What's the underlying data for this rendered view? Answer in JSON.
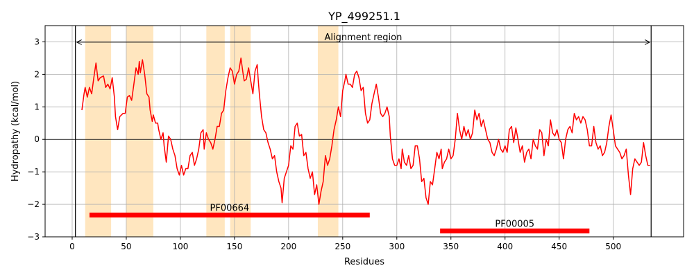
{
  "chart_data": {
    "type": "line",
    "title": "YP_499251.1",
    "xlabel": "Residues",
    "ylabel": "Hydropathy (kcal/mol)",
    "xlim": [
      -25,
      565
    ],
    "ylim": [
      -3,
      3.5
    ],
    "xticks": [
      0,
      50,
      100,
      150,
      200,
      250,
      300,
      350,
      400,
      450,
      500
    ],
    "yticks": [
      -3,
      -2,
      -1,
      0,
      1,
      2,
      3
    ],
    "grid": true,
    "colors": {
      "series": "#ff0000",
      "highlight": "#ffe6bf",
      "domain_bar": "#ff0000",
      "guides": "#000000"
    },
    "highlighted_regions": [
      [
        12,
        36
      ],
      [
        50,
        75
      ],
      [
        124,
        141
      ],
      [
        146,
        165
      ],
      [
        227,
        246
      ]
    ],
    "alignment_region": {
      "label": "Alignment region",
      "start": 3,
      "end": 535,
      "y": 2.99
    },
    "domains": [
      {
        "label": "PF00664",
        "start": 16,
        "end": 275,
        "y": -2.33
      },
      {
        "label": "PF00005",
        "start": 340,
        "end": 478,
        "y": -2.82
      }
    ],
    "series": [
      {
        "values": [
          [
            9,
            0.9
          ],
          [
            11,
            1.4
          ],
          [
            12,
            1.6
          ],
          [
            14,
            1.3
          ],
          [
            16,
            1.6
          ],
          [
            18,
            1.4
          ],
          [
            20,
            1.9
          ],
          [
            22,
            2.35
          ],
          [
            24,
            1.8
          ],
          [
            26,
            1.9
          ],
          [
            29,
            1.95
          ],
          [
            31,
            1.6
          ],
          [
            33,
            1.7
          ],
          [
            35,
            1.55
          ],
          [
            37,
            1.9
          ],
          [
            39,
            1.3
          ],
          [
            40,
            0.7
          ],
          [
            42,
            0.3
          ],
          [
            44,
            0.7
          ],
          [
            47,
            0.8
          ],
          [
            49,
            0.8
          ],
          [
            51,
            1.3
          ],
          [
            53,
            1.35
          ],
          [
            55,
            1.2
          ],
          [
            57,
            1.7
          ],
          [
            59,
            2.2
          ],
          [
            61,
            2.0
          ],
          [
            62,
            2.4
          ],
          [
            63,
            2.05
          ],
          [
            65,
            2.45
          ],
          [
            67,
            2.0
          ],
          [
            69,
            1.4
          ],
          [
            71,
            1.3
          ],
          [
            72,
            0.9
          ],
          [
            74,
            0.55
          ],
          [
            75,
            0.75
          ],
          [
            77,
            0.5
          ],
          [
            79,
            0.5
          ],
          [
            80,
            0.3
          ],
          [
            82,
            0.0
          ],
          [
            84,
            0.2
          ],
          [
            85,
            -0.2
          ],
          [
            87,
            -0.7
          ],
          [
            89,
            0.1
          ],
          [
            91,
            0.0
          ],
          [
            93,
            -0.3
          ],
          [
            95,
            -0.5
          ],
          [
            97,
            -0.9
          ],
          [
            99,
            -1.1
          ],
          [
            101,
            -0.8
          ],
          [
            103,
            -1.1
          ],
          [
            105,
            -0.9
          ],
          [
            107,
            -0.9
          ],
          [
            109,
            -0.5
          ],
          [
            111,
            -0.4
          ],
          [
            113,
            -0.8
          ],
          [
            115,
            -0.6
          ],
          [
            117,
            -0.3
          ],
          [
            119,
            0.2
          ],
          [
            121,
            0.3
          ],
          [
            122,
            -0.3
          ],
          [
            124,
            0.2
          ],
          [
            126,
            0.0
          ],
          [
            128,
            -0.1
          ],
          [
            130,
            -0.3
          ],
          [
            132,
            0.0
          ],
          [
            134,
            0.4
          ],
          [
            136,
            0.4
          ],
          [
            138,
            0.8
          ],
          [
            140,
            0.9
          ],
          [
            142,
            1.5
          ],
          [
            144,
            1.9
          ],
          [
            146,
            2.2
          ],
          [
            148,
            2.1
          ],
          [
            150,
            1.7
          ],
          [
            152,
            2.0
          ],
          [
            154,
            2.1
          ],
          [
            156,
            2.5
          ],
          [
            158,
            2.0
          ],
          [
            159,
            1.8
          ],
          [
            161,
            1.85
          ],
          [
            163,
            2.2
          ],
          [
            165,
            1.8
          ],
          [
            167,
            1.4
          ],
          [
            169,
            2.1
          ],
          [
            171,
            2.3
          ],
          [
            172,
            1.8
          ],
          [
            173,
            1.4
          ],
          [
            175,
            0.7
          ],
          [
            177,
            0.3
          ],
          [
            179,
            0.2
          ],
          [
            181,
            -0.1
          ],
          [
            183,
            -0.3
          ],
          [
            185,
            -0.6
          ],
          [
            187,
            -0.5
          ],
          [
            189,
            -1.0
          ],
          [
            191,
            -1.3
          ],
          [
            193,
            -1.5
          ],
          [
            194,
            -1.95
          ],
          [
            196,
            -1.2
          ],
          [
            198,
            -1.0
          ],
          [
            200,
            -0.8
          ],
          [
            201,
            -0.5
          ],
          [
            202,
            -0.2
          ],
          [
            204,
            -0.3
          ],
          [
            206,
            0.4
          ],
          [
            208,
            0.5
          ],
          [
            210,
            0.1
          ],
          [
            212,
            0.15
          ],
          [
            214,
            -0.5
          ],
          [
            216,
            -0.4
          ],
          [
            218,
            -0.9
          ],
          [
            220,
            -1.2
          ],
          [
            222,
            -1.0
          ],
          [
            224,
            -1.7
          ],
          [
            226,
            -1.4
          ],
          [
            228,
            -2.0
          ],
          [
            230,
            -1.6
          ],
          [
            232,
            -1.3
          ],
          [
            234,
            -0.5
          ],
          [
            236,
            -0.8
          ],
          [
            238,
            -0.6
          ],
          [
            240,
            -0.2
          ],
          [
            242,
            0.3
          ],
          [
            244,
            0.6
          ],
          [
            246,
            1.0
          ],
          [
            248,
            0.7
          ],
          [
            250,
            1.5
          ],
          [
            252,
            1.8
          ],
          [
            253,
            2.0
          ],
          [
            255,
            1.7
          ],
          [
            257,
            1.7
          ],
          [
            259,
            1.6
          ],
          [
            261,
            2.0
          ],
          [
            263,
            2.1
          ],
          [
            265,
            1.9
          ],
          [
            267,
            1.5
          ],
          [
            269,
            1.6
          ],
          [
            271,
            0.8
          ],
          [
            273,
            0.5
          ],
          [
            275,
            0.6
          ],
          [
            277,
            1.1
          ],
          [
            279,
            1.4
          ],
          [
            281,
            1.7
          ],
          [
            283,
            1.3
          ],
          [
            285,
            0.8
          ],
          [
            287,
            0.7
          ],
          [
            289,
            0.8
          ],
          [
            291,
            1.0
          ],
          [
            293,
            0.7
          ],
          [
            294,
            0.1
          ],
          [
            296,
            -0.6
          ],
          [
            298,
            -0.8
          ],
          [
            300,
            -0.8
          ],
          [
            302,
            -0.6
          ],
          [
            304,
            -0.9
          ],
          [
            305,
            -0.3
          ],
          [
            307,
            -0.7
          ],
          [
            309,
            -0.8
          ],
          [
            311,
            -0.5
          ],
          [
            313,
            -0.9
          ],
          [
            315,
            -0.8
          ],
          [
            317,
            -0.2
          ],
          [
            319,
            -0.2
          ],
          [
            321,
            -0.6
          ],
          [
            323,
            -1.3
          ],
          [
            325,
            -1.2
          ],
          [
            327,
            -1.8
          ],
          [
            329,
            -2.0
          ],
          [
            331,
            -1.3
          ],
          [
            333,
            -1.4
          ],
          [
            335,
            -0.9
          ],
          [
            337,
            -0.4
          ],
          [
            339,
            -0.6
          ],
          [
            341,
            -0.3
          ],
          [
            342,
            -0.9
          ],
          [
            344,
            -0.7
          ],
          [
            346,
            -0.6
          ],
          [
            348,
            -0.3
          ],
          [
            350,
            -0.6
          ],
          [
            352,
            -0.5
          ],
          [
            354,
            0.0
          ],
          [
            356,
            0.8
          ],
          [
            358,
            0.3
          ],
          [
            360,
            0.0
          ],
          [
            362,
            0.4
          ],
          [
            364,
            0.1
          ],
          [
            366,
            0.3
          ],
          [
            368,
            0.0
          ],
          [
            370,
            0.2
          ],
          [
            372,
            0.9
          ],
          [
            374,
            0.6
          ],
          [
            376,
            0.8
          ],
          [
            378,
            0.4
          ],
          [
            380,
            0.6
          ],
          [
            382,
            0.3
          ],
          [
            384,
            0.0
          ],
          [
            386,
            -0.1
          ],
          [
            388,
            -0.4
          ],
          [
            390,
            -0.5
          ],
          [
            392,
            -0.3
          ],
          [
            394,
            0.0
          ],
          [
            396,
            -0.3
          ],
          [
            398,
            -0.4
          ],
          [
            400,
            -0.2
          ],
          [
            402,
            -0.4
          ],
          [
            404,
            0.3
          ],
          [
            406,
            0.4
          ],
          [
            408,
            -0.1
          ],
          [
            410,
            0.35
          ],
          [
            412,
            0.0
          ],
          [
            414,
            -0.4
          ],
          [
            416,
            -0.2
          ],
          [
            418,
            -0.7
          ],
          [
            420,
            -0.4
          ],
          [
            422,
            -0.3
          ],
          [
            424,
            -0.6
          ],
          [
            426,
            0.0
          ],
          [
            428,
            -0.2
          ],
          [
            430,
            -0.3
          ],
          [
            432,
            0.3
          ],
          [
            434,
            0.2
          ],
          [
            436,
            -0.5
          ],
          [
            438,
            0.0
          ],
          [
            440,
            -0.2
          ],
          [
            442,
            0.6
          ],
          [
            444,
            0.2
          ],
          [
            446,
            0.1
          ],
          [
            448,
            0.3
          ],
          [
            450,
            0.0
          ],
          [
            452,
            -0.1
          ],
          [
            454,
            -0.6
          ],
          [
            456,
            0.0
          ],
          [
            458,
            0.3
          ],
          [
            460,
            0.4
          ],
          [
            462,
            0.2
          ],
          [
            464,
            0.8
          ],
          [
            466,
            0.6
          ],
          [
            468,
            0.7
          ],
          [
            470,
            0.5
          ],
          [
            472,
            0.7
          ],
          [
            474,
            0.6
          ],
          [
            476,
            0.3
          ],
          [
            478,
            -0.2
          ],
          [
            480,
            -0.2
          ],
          [
            482,
            0.4
          ],
          [
            484,
            -0.1
          ],
          [
            486,
            -0.3
          ],
          [
            488,
            -0.2
          ],
          [
            490,
            -0.5
          ],
          [
            492,
            -0.4
          ],
          [
            494,
            -0.1
          ],
          [
            496,
            0.4
          ],
          [
            498,
            0.75
          ],
          [
            500,
            0.3
          ],
          [
            502,
            -0.2
          ],
          [
            504,
            -0.3
          ],
          [
            506,
            -0.4
          ],
          [
            508,
            -0.6
          ],
          [
            510,
            -0.5
          ],
          [
            512,
            -0.3
          ],
          [
            514,
            -1.1
          ],
          [
            516,
            -1.7
          ],
          [
            518,
            -0.9
          ],
          [
            520,
            -0.6
          ],
          [
            522,
            -0.7
          ],
          [
            524,
            -0.8
          ],
          [
            526,
            -0.7
          ],
          [
            528,
            -0.1
          ],
          [
            530,
            -0.5
          ],
          [
            532,
            -0.8
          ],
          [
            534,
            -0.8
          ]
        ]
      }
    ]
  }
}
